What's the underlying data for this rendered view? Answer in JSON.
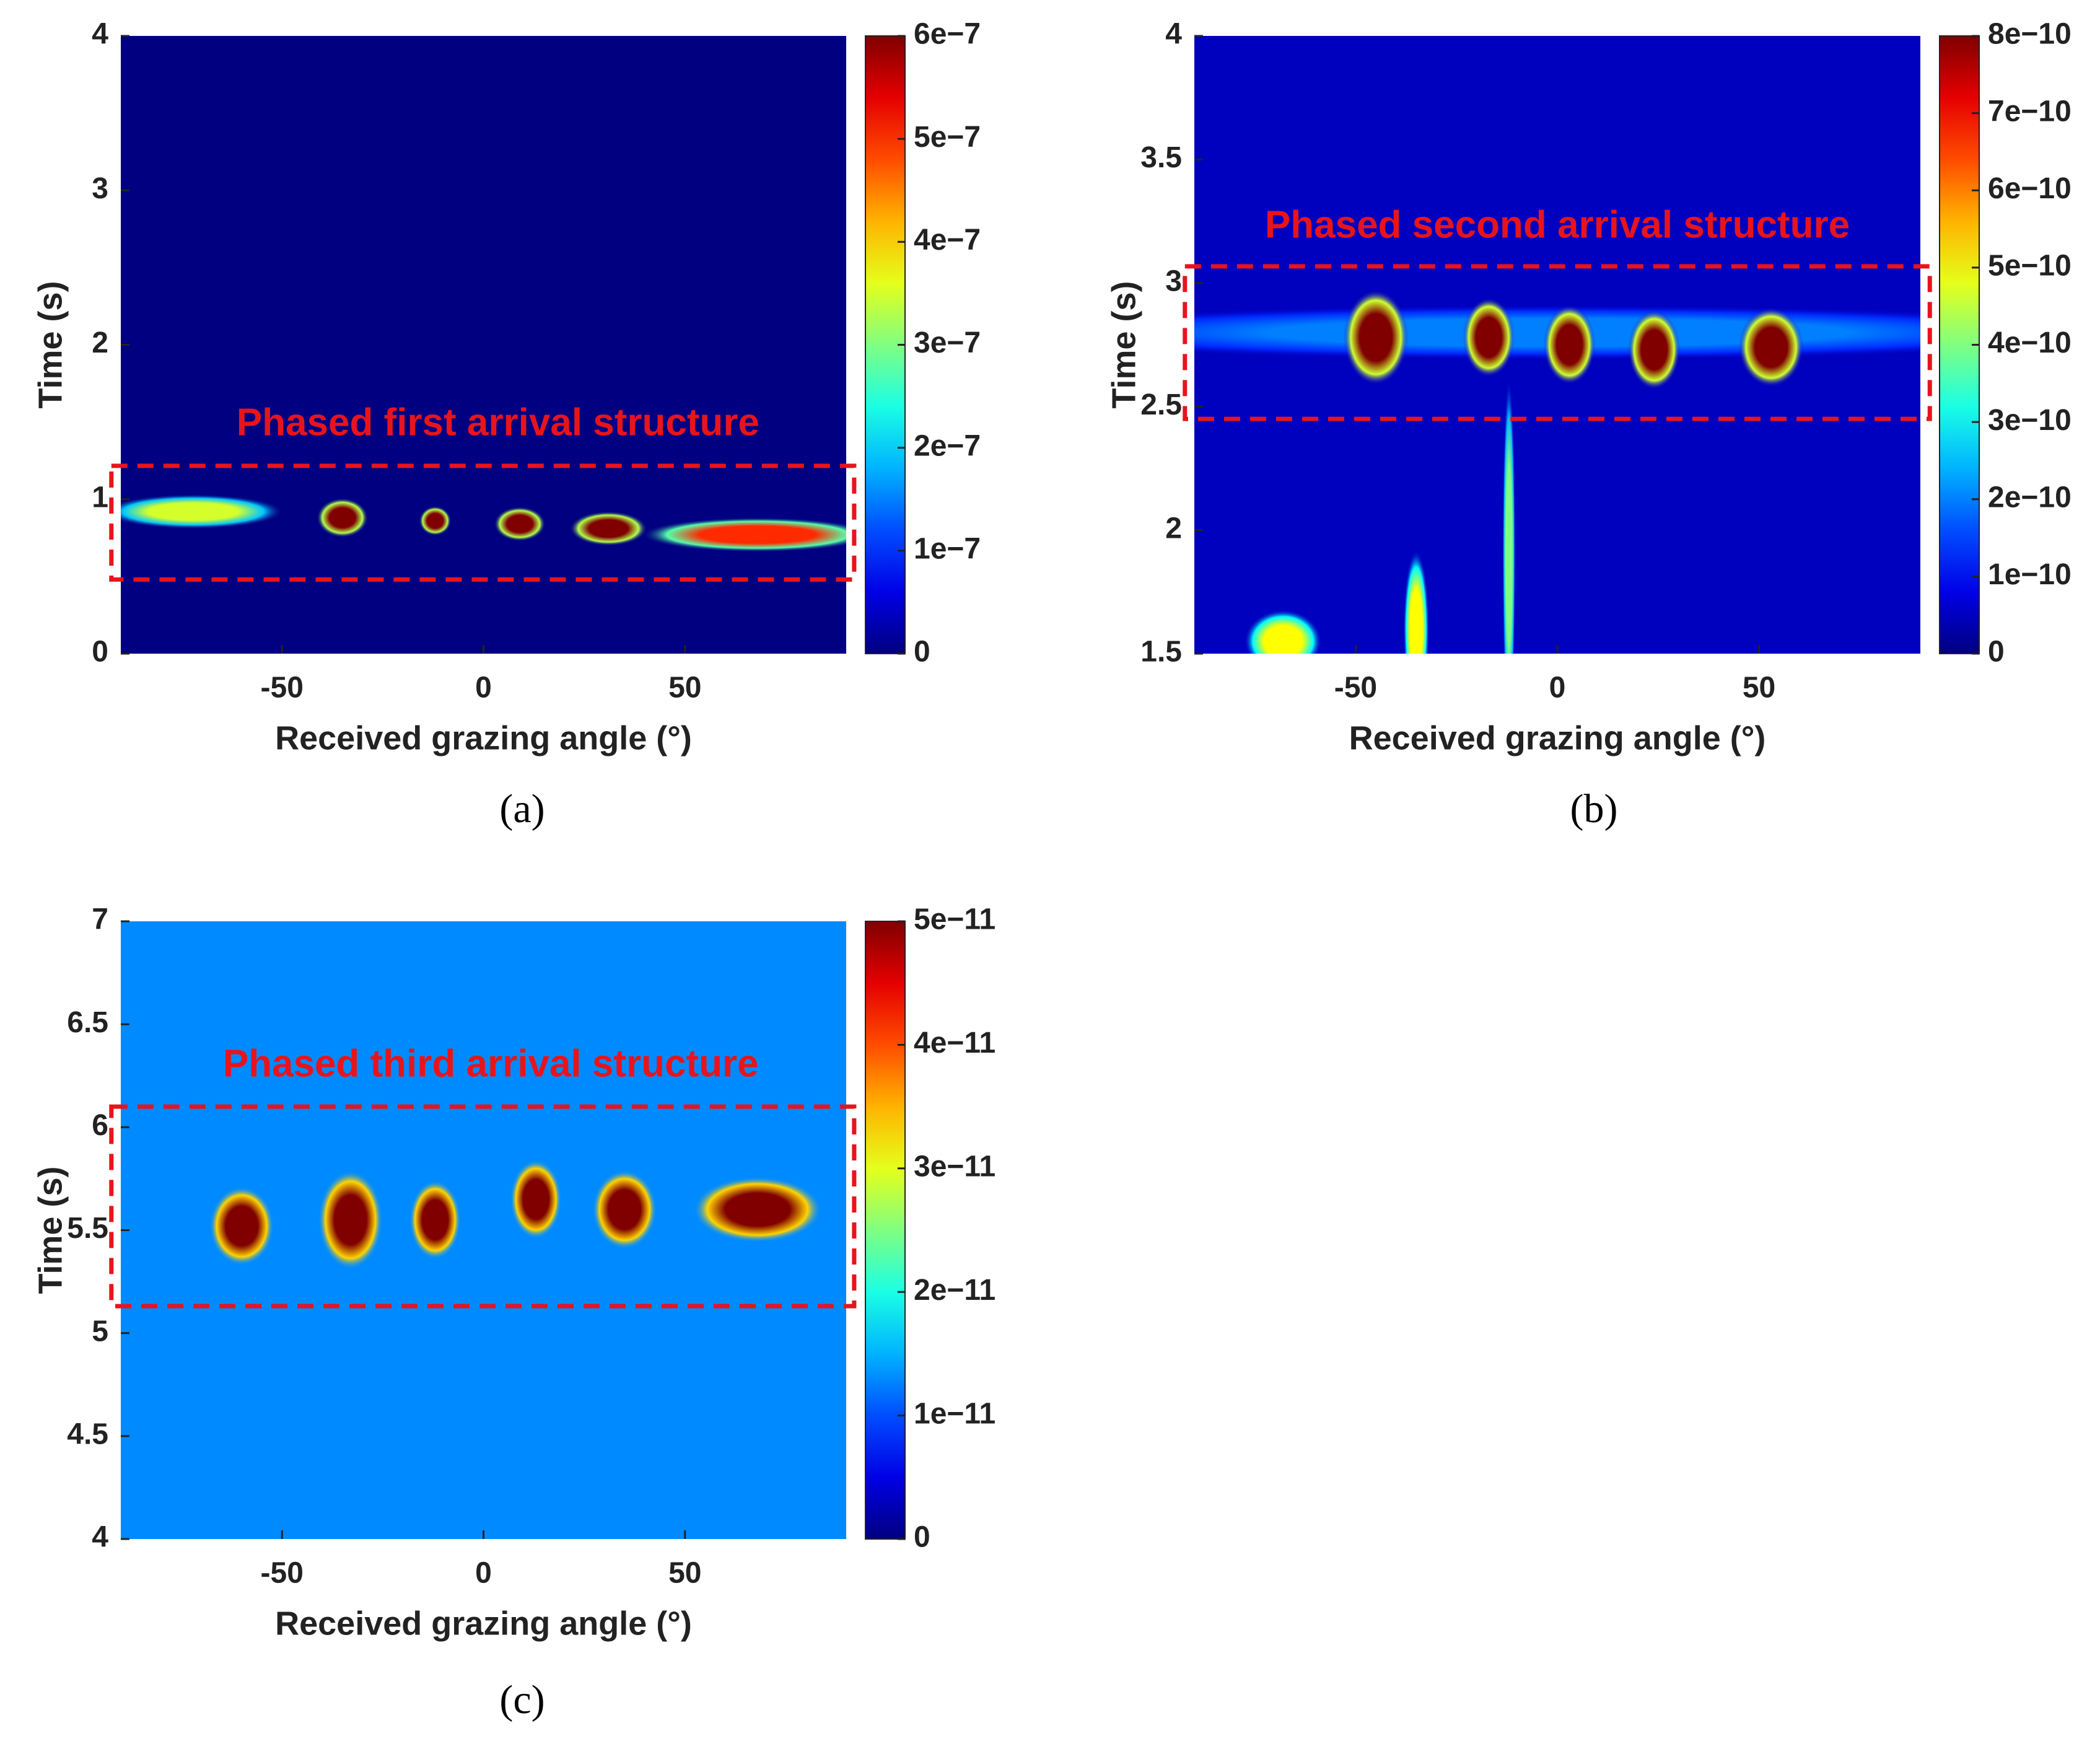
{
  "chart_data": [
    {
      "type": "heatmap",
      "caption": "(a)",
      "annotation": "Phased first arrival structure",
      "xlabel": "Received grazing angle (°)",
      "ylabel": "Time (s)",
      "xlim": [
        -90,
        90
      ],
      "xticks": [
        -50,
        0,
        50
      ],
      "ylim": [
        0,
        4
      ],
      "yticks": [
        0,
        1,
        2,
        3,
        4
      ],
      "clim": [
        0,
        6e-07
      ],
      "cticks": [
        0,
        {
          "value": 1e-07,
          "label": "1e−7"
        },
        {
          "value": 2e-07,
          "label": "2e−7"
        },
        {
          "value": 3e-07,
          "label": "3e−7"
        },
        {
          "value": 4e-07,
          "label": "4e−7"
        },
        {
          "value": 5e-07,
          "label": "5e−7"
        },
        {
          "value": 6e-07,
          "label": "6e−7"
        }
      ],
      "background": 0,
      "hotspots": [
        {
          "x": -72,
          "y": 0.92,
          "wx": 14,
          "wy": 0.07,
          "value": 3.5e-07
        },
        {
          "x": -35,
          "y": 0.88,
          "wx": 4,
          "wy": 0.08,
          "value": 6e-07
        },
        {
          "x": -12,
          "y": 0.86,
          "wx": 2.5,
          "wy": 0.06,
          "value": 6e-07
        },
        {
          "x": 9,
          "y": 0.84,
          "wx": 4,
          "wy": 0.07,
          "value": 6e-07
        },
        {
          "x": 31,
          "y": 0.81,
          "wx": 6,
          "wy": 0.07,
          "value": 6e-07
        },
        {
          "x": 68,
          "y": 0.77,
          "wx": 18,
          "wy": 0.07,
          "value": 5e-07
        }
      ]
    },
    {
      "type": "heatmap",
      "caption": "(b)",
      "annotation": "Phased second arrival structure",
      "xlabel": "Received grazing angle (°)",
      "ylabel": "Time (s)",
      "xlim": [
        -90,
        90
      ],
      "xticks": [
        -50,
        0,
        50
      ],
      "ylim": [
        1.5,
        4
      ],
      "yticks": [
        1.5,
        2,
        2.5,
        3,
        3.5,
        4
      ],
      "clim": [
        0,
        8e-10
      ],
      "cticks": [
        0,
        {
          "value": 1e-10,
          "label": "1e−10"
        },
        {
          "value": 2e-10,
          "label": "2e−10"
        },
        {
          "value": 3e-10,
          "label": "3e−10"
        },
        {
          "value": 4e-10,
          "label": "4e−10"
        },
        {
          "value": 5e-10,
          "label": "5e−10"
        },
        {
          "value": 6e-10,
          "label": "6e−10"
        },
        {
          "value": 7e-10,
          "label": "7e−10"
        },
        {
          "value": 8e-10,
          "label": "8e−10"
        }
      ],
      "background": 5e-11,
      "hotspots": [
        {
          "x": 0,
          "y": 2.8,
          "wx": 90,
          "wy": 0.07,
          "value": 2e-10
        },
        {
          "x": -45,
          "y": 2.78,
          "wx": 5,
          "wy": 0.12,
          "value": 8e-10
        },
        {
          "x": -17,
          "y": 2.78,
          "wx": 4,
          "wy": 0.1,
          "value": 8e-10
        },
        {
          "x": 3,
          "y": 2.75,
          "wx": 4,
          "wy": 0.1,
          "value": 8e-10
        },
        {
          "x": 24,
          "y": 2.73,
          "wx": 4,
          "wy": 0.1,
          "value": 8e-10
        },
        {
          "x": 53,
          "y": 2.74,
          "wx": 5,
          "wy": 0.1,
          "value": 8e-10
        },
        {
          "x": -12,
          "y": 1.9,
          "wx": 1,
          "wy": 0.45,
          "value": 4e-10
        },
        {
          "x": -35,
          "y": 1.6,
          "wx": 2,
          "wy": 0.2,
          "value": 5e-10
        },
        {
          "x": -68,
          "y": 1.55,
          "wx": 6,
          "wy": 0.08,
          "value": 5e-10
        }
      ]
    },
    {
      "type": "heatmap",
      "caption": "(c)",
      "annotation": "Phased third arrival structure",
      "xlabel": "Received grazing angle (°)",
      "ylabel": "Time (s)",
      "xlim": [
        -90,
        90
      ],
      "xticks": [
        -50,
        0,
        50
      ],
      "ylim": [
        4,
        7
      ],
      "yticks": [
        4,
        4.5,
        5,
        5.5,
        6,
        6.5,
        7
      ],
      "clim": [
        0,
        5e-11
      ],
      "cticks": [
        0,
        {
          "value": 1e-11,
          "label": "1e−11"
        },
        {
          "value": 2e-11,
          "label": "2e−11"
        },
        {
          "value": 3e-11,
          "label": "3e−11"
        },
        {
          "value": 4e-11,
          "label": "4e−11"
        },
        {
          "value": 5e-11,
          "label": "5e−11"
        }
      ],
      "background": 1.3e-11,
      "hotspots": [
        {
          "x": -60,
          "y": 5.52,
          "wx": 5,
          "wy": 0.12,
          "value": 5e-11
        },
        {
          "x": -33,
          "y": 5.55,
          "wx": 5,
          "wy": 0.15,
          "value": 5e-11
        },
        {
          "x": -12,
          "y": 5.55,
          "wx": 4,
          "wy": 0.12,
          "value": 5e-11
        },
        {
          "x": 13,
          "y": 5.65,
          "wx": 4,
          "wy": 0.12,
          "value": 5e-11
        },
        {
          "x": 35,
          "y": 5.6,
          "wx": 5,
          "wy": 0.12,
          "value": 5e-11
        },
        {
          "x": 68,
          "y": 5.6,
          "wx": 10,
          "wy": 0.1,
          "value": 5e-11
        }
      ]
    }
  ]
}
